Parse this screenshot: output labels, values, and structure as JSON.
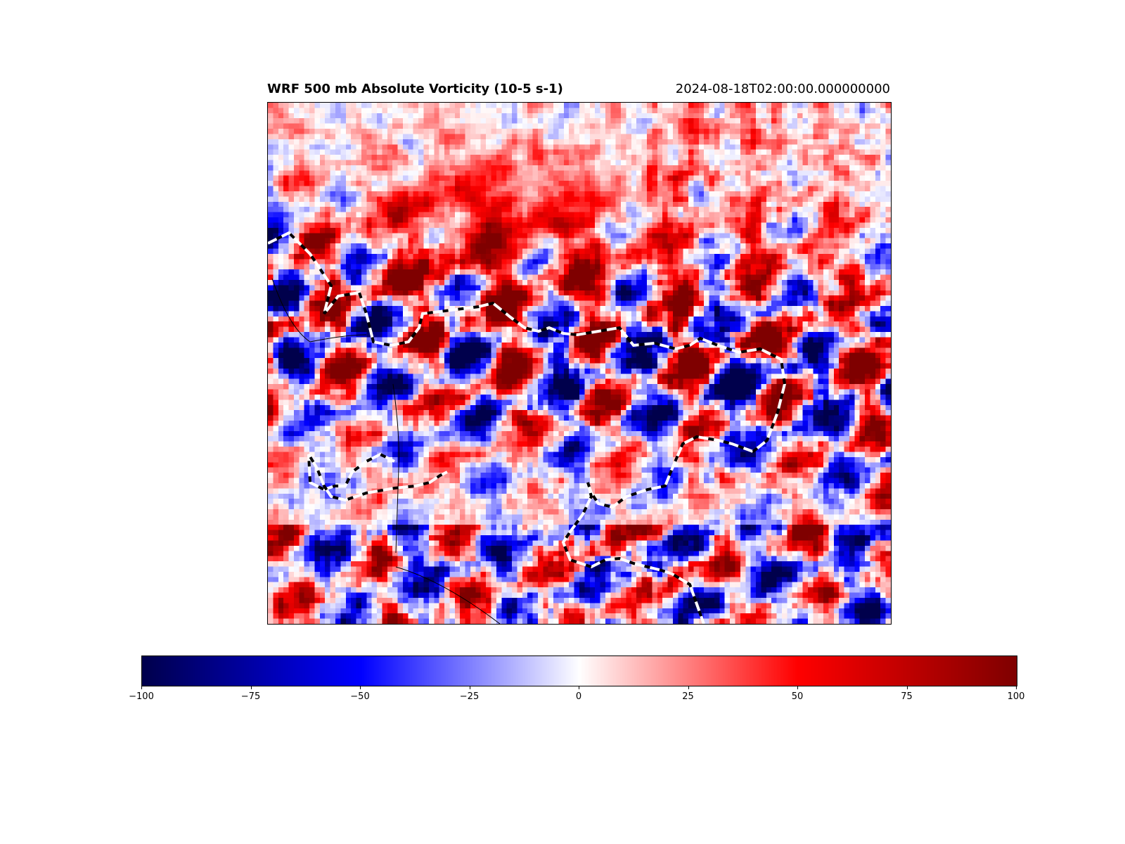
{
  "header": {
    "title": "WRF 500 mb Absolute Vorticity (10-5 s-1)",
    "valid_time": "2024-08-18T02:00:00.000000000"
  },
  "chart_data": {
    "type": "heatmap",
    "title": "WRF 500 mb Absolute Vorticity (10-5 s-1)",
    "subtitle": "2024-08-18T02:00:00.000000000",
    "colormap": "seismic",
    "colormap_stops": [
      {
        "value": -100,
        "color": "#00004c"
      },
      {
        "value": -50,
        "color": "#0000ff"
      },
      {
        "value": 0,
        "color": "#ffffff"
      },
      {
        "value": 50,
        "color": "#ff0000"
      },
      {
        "value": 100,
        "color": "#7f0000"
      }
    ],
    "clim": [
      -100,
      100
    ],
    "colorbar": {
      "orientation": "horizontal",
      "ticks": [
        -100,
        -75,
        -50,
        -25,
        0,
        25,
        50,
        75,
        100
      ],
      "tick_labels": [
        "−100",
        "−75",
        "−50",
        "−25",
        "0",
        "25",
        "50",
        "75",
        "100"
      ]
    },
    "overlays": [
      "dashed black-white contour",
      "thin black boundary lines"
    ],
    "grid": false
  }
}
